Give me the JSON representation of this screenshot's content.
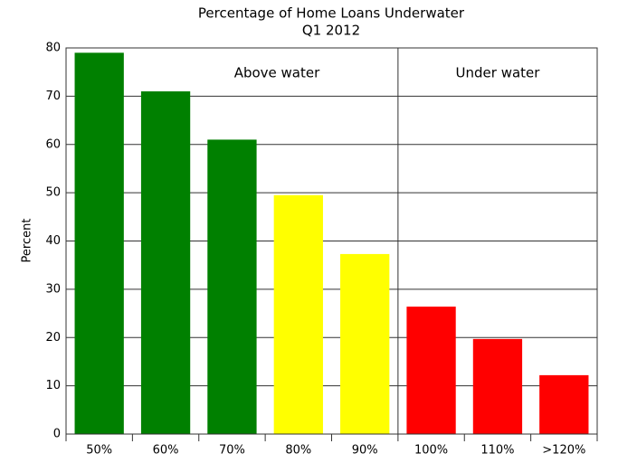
{
  "chart_data": {
    "type": "bar",
    "title": "Percentage of Home Loans Underwater",
    "subtitle": "Q1 2012",
    "y_label": "Percent",
    "categories": [
      "50%",
      "60%",
      "70%",
      "80%",
      "90%",
      "100%",
      "110%",
      ">120%"
    ],
    "values": [
      79,
      71,
      61,
      49.5,
      37.3,
      26.4,
      19.7,
      12.2
    ],
    "colors": [
      "#008000",
      "#008000",
      "#008000",
      "#ffff00",
      "#ffff00",
      "#ff0000",
      "#ff0000",
      "#ff0000"
    ],
    "annotations": [
      "Above water",
      "Under water"
    ],
    "ylim": [
      0,
      80
    ],
    "yticks": [
      0,
      10,
      20,
      30,
      40,
      50,
      60,
      70,
      80
    ],
    "grid": true
  }
}
